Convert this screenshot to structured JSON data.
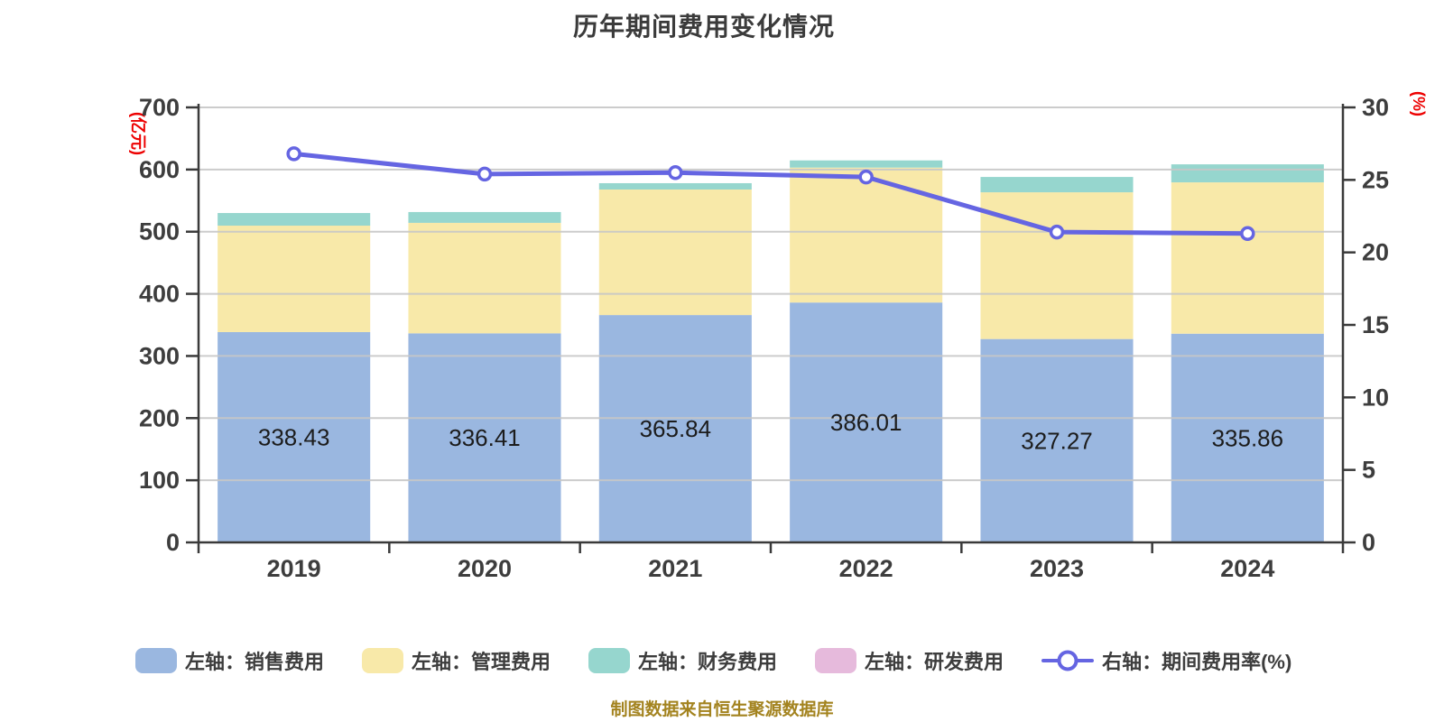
{
  "title": "历年期间费用变化情况",
  "caption": "制图数据来自恒生聚源数据库",
  "legend": {
    "items": [
      {
        "label": "左轴：销售费用",
        "type": "bar",
        "color": "#9AB7E0"
      },
      {
        "label": "左轴：管理费用",
        "type": "bar",
        "color": "#F8E9A9"
      },
      {
        "label": "左轴：财务费用",
        "type": "bar",
        "color": "#96D6CE"
      },
      {
        "label": "左轴：研发费用",
        "type": "bar",
        "color": "#E6BADC"
      },
      {
        "label": "右轴：期间费用率(%)",
        "type": "line",
        "color": "#6565E2"
      }
    ]
  },
  "chart_data": {
    "type": "bar",
    "subtype": "stacked-bar-with-line",
    "categories": [
      "2019",
      "2020",
      "2021",
      "2022",
      "2023",
      "2024"
    ],
    "axes": {
      "left": {
        "unit": "(亿元)",
        "min": 0,
        "max": 700,
        "step": 100,
        "ticks": [
          "0",
          "100",
          "200",
          "300",
          "400",
          "500",
          "600",
          "700"
        ]
      },
      "right": {
        "unit": "(%)",
        "min": 0,
        "max": 30,
        "step": 5,
        "ticks": [
          "0",
          "5",
          "10",
          "15",
          "20",
          "25",
          "30"
        ]
      }
    },
    "series": [
      {
        "key": "sales",
        "name": "左轴：销售费用",
        "type": "bar",
        "axis": "left",
        "color": "#9AB7E0",
        "values": [
          338.43,
          336.41,
          365.84,
          386.01,
          327.27,
          335.86
        ],
        "data_labels": [
          "338.43",
          "336.41",
          "365.84",
          "386.01",
          "327.27",
          "335.86"
        ]
      },
      {
        "key": "admin",
        "name": "左轴：管理费用",
        "type": "bar",
        "axis": "left",
        "color": "#F8E9A9",
        "values": [
          171.3,
          177.8,
          202.0,
          217.1,
          236.1,
          243.5
        ]
      },
      {
        "key": "finance",
        "name": "左轴：财务费用",
        "type": "bar",
        "axis": "left",
        "color": "#96D6CE",
        "values": [
          20.3,
          17.4,
          10.2,
          11.6,
          24.7,
          29.0
        ]
      },
      {
        "key": "rnd",
        "name": "左轴：研发费用",
        "type": "bar",
        "axis": "left",
        "color": "#E6BADC",
        "values": [
          0,
          0,
          0,
          0,
          0,
          0
        ]
      },
      {
        "key": "rate",
        "name": "右轴：期间费用率(%)",
        "type": "line",
        "axis": "right",
        "color": "#6565E2",
        "values": [
          26.8,
          25.4,
          25.5,
          25.2,
          21.4,
          21.3
        ]
      }
    ],
    "colors": {
      "grid": "#C7C7C7",
      "axis": "#3A3A3A",
      "tick_label": "#3D3D3D",
      "value_label": "#1C1C1C"
    },
    "grid": "on",
    "legend_position": "bottom"
  }
}
